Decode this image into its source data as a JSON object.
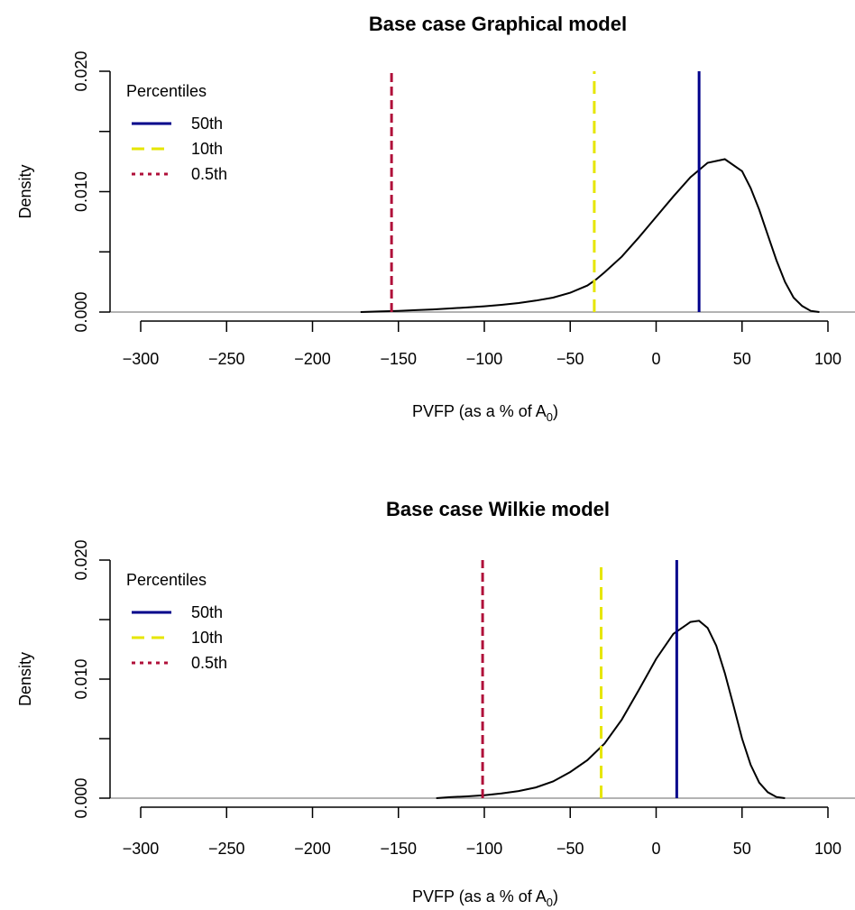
{
  "chart_data": [
    {
      "type": "line",
      "title": "Base case Graphical model",
      "xlabel": "PVFP (as a % of A",
      "xlabel_subscript": "0",
      "xlabel_suffix": ")",
      "ylabel": "Density",
      "xlim": [
        -300,
        100
      ],
      "ylim": [
        0,
        0.02
      ],
      "x_ticks": [
        -300,
        -250,
        -200,
        -150,
        -100,
        -50,
        0,
        50,
        100
      ],
      "y_ticks": [
        0.0,
        0.005,
        0.01,
        0.015,
        0.02
      ],
      "y_tick_labels": [
        "0.000",
        "",
        "0.010",
        "",
        "0.020"
      ],
      "grid": false,
      "legend": {
        "title": "Percentiles",
        "placement": "top-left",
        "entries": [
          {
            "label": "50th",
            "color": "#00008b",
            "style": "solid"
          },
          {
            "label": "10th",
            "color": "#e6e600",
            "style": "dashed"
          },
          {
            "label": "0.5th",
            "color": "#b0103a",
            "style": "dotted"
          }
        ]
      },
      "density": {
        "color": "#000000",
        "x": [
          -172,
          -160,
          -150,
          -140,
          -130,
          -120,
          -110,
          -100,
          -90,
          -80,
          -70,
          -60,
          -50,
          -40,
          -35,
          -30,
          -20,
          -10,
          0,
          10,
          20,
          30,
          40,
          50,
          55,
          60,
          65,
          70,
          75,
          80,
          85,
          90,
          95
        ],
        "y": [
          0.0,
          5e-05,
          0.0001,
          0.00016,
          0.00022,
          0.0003,
          0.00038,
          0.00048,
          0.0006,
          0.00075,
          0.00095,
          0.0012,
          0.0016,
          0.0022,
          0.0027,
          0.0033,
          0.0046,
          0.0062,
          0.0079,
          0.0096,
          0.0112,
          0.0124,
          0.0127,
          0.0117,
          0.0103,
          0.0085,
          0.0064,
          0.0043,
          0.0025,
          0.0012,
          0.0005,
          0.0001,
          0.0
        ]
      },
      "percentile_lines": [
        {
          "label": "50th",
          "x": 25,
          "color": "#00008b",
          "style": "solid"
        },
        {
          "label": "10th",
          "x": -36,
          "color": "#e6e600",
          "style": "dashed"
        },
        {
          "label": "0.5th",
          "x": -154,
          "color": "#b0103a",
          "style": "dotted"
        }
      ]
    },
    {
      "type": "line",
      "title": "Base case Wilkie model",
      "xlabel": "PVFP (as a % of A",
      "xlabel_subscript": "0",
      "xlabel_suffix": ")",
      "ylabel": "Density",
      "xlim": [
        -300,
        100
      ],
      "ylim": [
        0,
        0.02
      ],
      "x_ticks": [
        -300,
        -250,
        -200,
        -150,
        -100,
        -50,
        0,
        50,
        100
      ],
      "y_ticks": [
        0.0,
        0.005,
        0.01,
        0.015,
        0.02
      ],
      "y_tick_labels": [
        "0.000",
        "",
        "0.010",
        "",
        "0.020"
      ],
      "grid": false,
      "legend": {
        "title": "Percentiles",
        "placement": "top-left",
        "entries": [
          {
            "label": "50th",
            "color": "#00008b",
            "style": "solid"
          },
          {
            "label": "10th",
            "color": "#e6e600",
            "style": "dashed"
          },
          {
            "label": "0.5th",
            "color": "#b0103a",
            "style": "dotted"
          }
        ]
      },
      "density": {
        "color": "#000000",
        "x": [
          -128,
          -120,
          -110,
          -100,
          -90,
          -80,
          -70,
          -60,
          -50,
          -40,
          -30,
          -20,
          -10,
          0,
          10,
          20,
          25,
          30,
          35,
          40,
          45,
          50,
          55,
          60,
          65,
          70,
          75
        ],
        "y": [
          0.0,
          8e-05,
          0.00015,
          0.00025,
          0.0004,
          0.0006,
          0.0009,
          0.0014,
          0.0022,
          0.0032,
          0.0046,
          0.0066,
          0.0091,
          0.0117,
          0.0138,
          0.0148,
          0.0149,
          0.0143,
          0.0128,
          0.0105,
          0.0078,
          0.005,
          0.0028,
          0.0013,
          0.0005,
          0.0001,
          0.0
        ]
      },
      "percentile_lines": [
        {
          "label": "50th",
          "x": 12,
          "color": "#00008b",
          "style": "solid"
        },
        {
          "label": "10th",
          "x": -32,
          "color": "#e6e600",
          "style": "dashed"
        },
        {
          "label": "0.5th",
          "x": -101,
          "color": "#b0103a",
          "style": "dotted"
        }
      ]
    }
  ]
}
